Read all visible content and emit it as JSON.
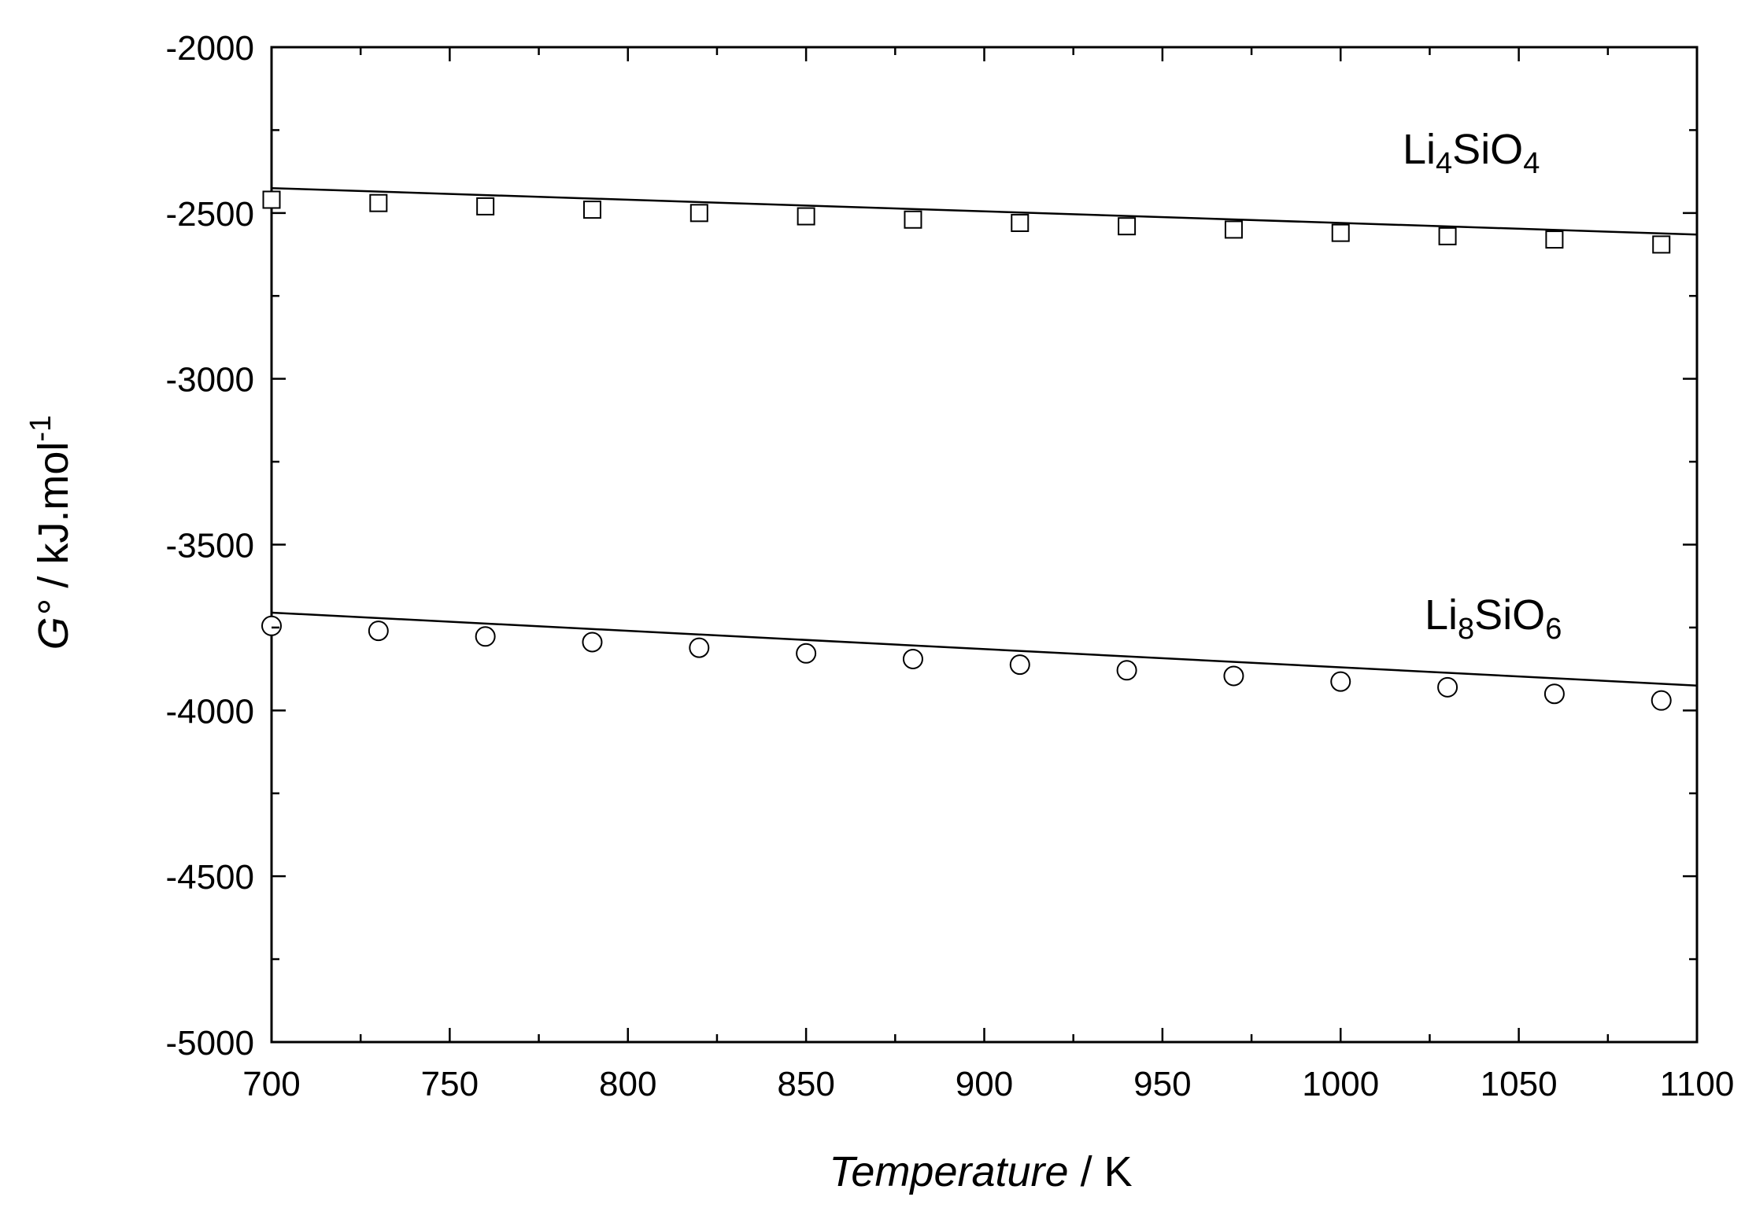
{
  "chart_data": {
    "type": "scatter",
    "title": "",
    "xlabel": {
      "main": "Temperature",
      "rest": " / K"
    },
    "ylabel": {
      "main": "G°",
      "rest": " / kJ.mol",
      "sup": "-1"
    },
    "xlim": [
      700,
      1100
    ],
    "ylim": [
      -5000,
      -2000
    ],
    "xticks": [
      700,
      750,
      800,
      850,
      900,
      950,
      1000,
      1050,
      1100
    ],
    "yticks": [
      -5000,
      -4500,
      -4000,
      -3500,
      -3000,
      -2500,
      -2000
    ],
    "grid": false,
    "series": [
      {
        "name": {
          "a": "Li",
          "a_sub": "4",
          "b": "SiO",
          "b_sub": "4"
        },
        "marker": "square",
        "points": {
          "x": [
            700,
            730,
            760,
            790,
            820,
            850,
            880,
            910,
            940,
            970,
            1000,
            1030,
            1060,
            1090
          ],
          "y": [
            -2460,
            -2470,
            -2480,
            -2490,
            -2500,
            -2510,
            -2520,
            -2530,
            -2540,
            -2550,
            -2560,
            -2570,
            -2580,
            -2595
          ]
        },
        "fit": {
          "x": [
            700,
            1100
          ],
          "y": [
            -2425,
            -2565
          ]
        }
      },
      {
        "name": {
          "a": "Li",
          "a_sub": "8",
          "b": "SiO",
          "b_sub": "6"
        },
        "marker": "circle",
        "points": {
          "x": [
            700,
            730,
            760,
            790,
            820,
            850,
            880,
            910,
            940,
            970,
            1000,
            1030,
            1060,
            1090
          ],
          "y": [
            -3745,
            -3760,
            -3777,
            -3794,
            -3811,
            -3828,
            -3845,
            -3862,
            -3879,
            -3896,
            -3913,
            -3930,
            -3950,
            -3970
          ]
        },
        "fit": {
          "x": [
            700,
            1100
          ],
          "y": [
            -3705,
            -3925
          ]
        }
      }
    ]
  }
}
